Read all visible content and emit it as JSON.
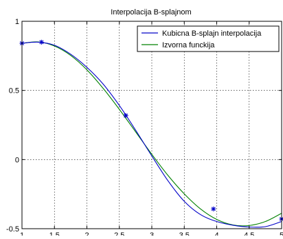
{
  "chart_data": {
    "type": "line",
    "title": "Interpolacija B-splajnom",
    "xlabel": "",
    "ylabel": "",
    "xlim": [
      1,
      5
    ],
    "ylim": [
      -0.5,
      1
    ],
    "grid": true,
    "legend_position": "top-right",
    "x_ticks": [
      1,
      1.5,
      2,
      2.5,
      3,
      3.5,
      4,
      4.5,
      5
    ],
    "x_tick_labels": [
      "1",
      "1.5",
      "2",
      "2.5",
      "3",
      "3.5",
      "4",
      "4.5",
      "5"
    ],
    "y_ticks": [
      -0.5,
      0,
      0.5,
      1
    ],
    "y_tick_labels": [
      "-0.5",
      "0",
      "0.5",
      "1"
    ],
    "series": [
      {
        "name": "Kubicna B-splajn interpolacija",
        "color": "#0000c8",
        "x": [
          1,
          1.25,
          1.5,
          1.75,
          2,
          2.25,
          2.5,
          2.75,
          3,
          3.25,
          3.5,
          3.75,
          4,
          4.25,
          4.5,
          4.75,
          5
        ],
        "y": [
          0.841,
          0.849,
          0.827,
          0.762,
          0.667,
          0.546,
          0.391,
          0.213,
          0.026,
          -0.154,
          -0.302,
          -0.398,
          -0.448,
          -0.475,
          -0.488,
          -0.485,
          -0.448
        ]
      },
      {
        "name": "Izvorna funckija",
        "color": "#008000",
        "x": [
          1,
          1.25,
          1.5,
          1.75,
          2,
          2.25,
          2.5,
          2.75,
          3,
          3.25,
          3.5,
          3.75,
          4,
          4.25,
          4.5,
          4.75,
          5
        ],
        "y": [
          0.841,
          0.851,
          0.821,
          0.753,
          0.649,
          0.515,
          0.363,
          0.201,
          0.038,
          -0.115,
          -0.248,
          -0.357,
          -0.433,
          -0.473,
          -0.477,
          -0.448,
          -0.388
        ]
      }
    ],
    "markers": {
      "color": "#0000c8",
      "symbol": "*",
      "x": [
        1,
        1.3,
        2.6,
        3.95,
        5
      ],
      "y": [
        0.841,
        0.849,
        0.318,
        -0.357,
        -0.43
      ]
    }
  }
}
